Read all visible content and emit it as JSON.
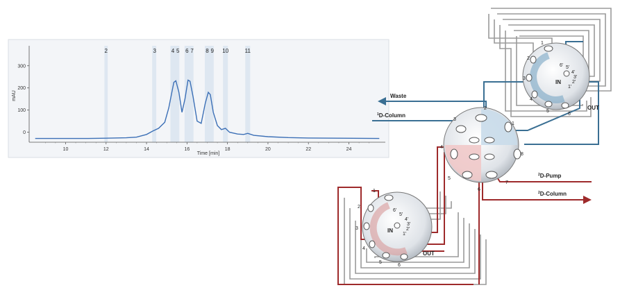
{
  "chart_data": {
    "type": "line",
    "title": "",
    "xlabel": "Time [min]",
    "ylabel": "mAU",
    "xlim": [
      8.2,
      25.8
    ],
    "ylim": [
      -45,
      390
    ],
    "x_ticks": [
      "10",
      "12",
      "14",
      "16",
      "18",
      "20",
      "22",
      "24"
    ],
    "y_ticks": [
      "0",
      "100",
      "200",
      "300"
    ],
    "grid": false,
    "peak_labels": [
      {
        "label": "2",
        "x": 12.0
      },
      {
        "label": "3",
        "x": 14.4
      },
      {
        "label": "4",
        "x": 15.3
      },
      {
        "label": "5",
        "x": 15.55
      },
      {
        "label": "6",
        "x": 16.0
      },
      {
        "label": "7",
        "x": 16.25
      },
      {
        "label": "8",
        "x": 17.0
      },
      {
        "label": "9",
        "x": 17.25
      },
      {
        "label": "10",
        "x": 17.9
      },
      {
        "label": "11",
        "x": 19.0
      }
    ],
    "shaded_windows": [
      [
        11.92,
        12.08
      ],
      [
        14.28,
        14.48
      ],
      [
        15.18,
        15.62
      ],
      [
        15.88,
        16.32
      ],
      [
        16.88,
        17.32
      ],
      [
        17.78,
        18.02
      ],
      [
        18.88,
        19.12
      ]
    ],
    "series": [
      {
        "x": [
          8.5,
          11.0,
          12.0,
          13.0,
          13.5,
          14.0,
          14.3,
          14.6,
          14.9,
          15.1,
          15.25,
          15.35,
          15.45,
          15.6,
          15.75,
          15.9,
          16.05,
          16.15,
          16.3,
          16.5,
          16.7,
          16.9,
          17.05,
          17.15,
          17.3,
          17.5,
          17.7,
          17.9,
          18.1,
          18.5,
          18.8,
          19.0,
          19.3,
          20.0,
          21.0,
          22.0,
          25.5
        ],
        "values": [
          -28,
          -28,
          -27,
          -25,
          -22,
          -10,
          5,
          18,
          45,
          110,
          180,
          225,
          232,
          180,
          90,
          150,
          235,
          230,
          160,
          50,
          40,
          130,
          180,
          170,
          90,
          30,
          12,
          18,
          0,
          -8,
          -10,
          -5,
          -14,
          -20,
          -24,
          -26,
          -28
        ]
      }
    ]
  },
  "valves": {
    "center": {
      "ports": [
        "1",
        "2",
        "3",
        "4",
        "5",
        "6",
        "7",
        "8"
      ],
      "labels": {
        "waste": "Waste",
        "col1_sup": "1",
        "col1_text": "D-Column",
        "pump_sup": "2",
        "pump_text": "D-Pump",
        "col2_sup": "2",
        "col2_text": "D-Column"
      }
    },
    "loop_top": {
      "ports": [
        "1",
        "2",
        "3",
        "4",
        "5",
        "6"
      ],
      "inner": [
        "6'",
        "5'",
        "4'",
        "3'",
        "2'",
        "1'"
      ],
      "in_label": "IN",
      "out_label": "OUT"
    },
    "loop_bottom": {
      "ports": [
        "1",
        "2",
        "3",
        "4",
        "5",
        "6"
      ],
      "inner": [
        "6'",
        "5'",
        "4'",
        "3'",
        "2'",
        "1'"
      ],
      "in_label": "IN",
      "out_label": "OUT"
    }
  },
  "colors": {
    "blue_flow": "#3a6f93",
    "red_flow": "#9e2a2b",
    "gray_loop": "#9a9a9a",
    "chart_line": "#3b6fb6",
    "shade": "#dbe5ef"
  }
}
